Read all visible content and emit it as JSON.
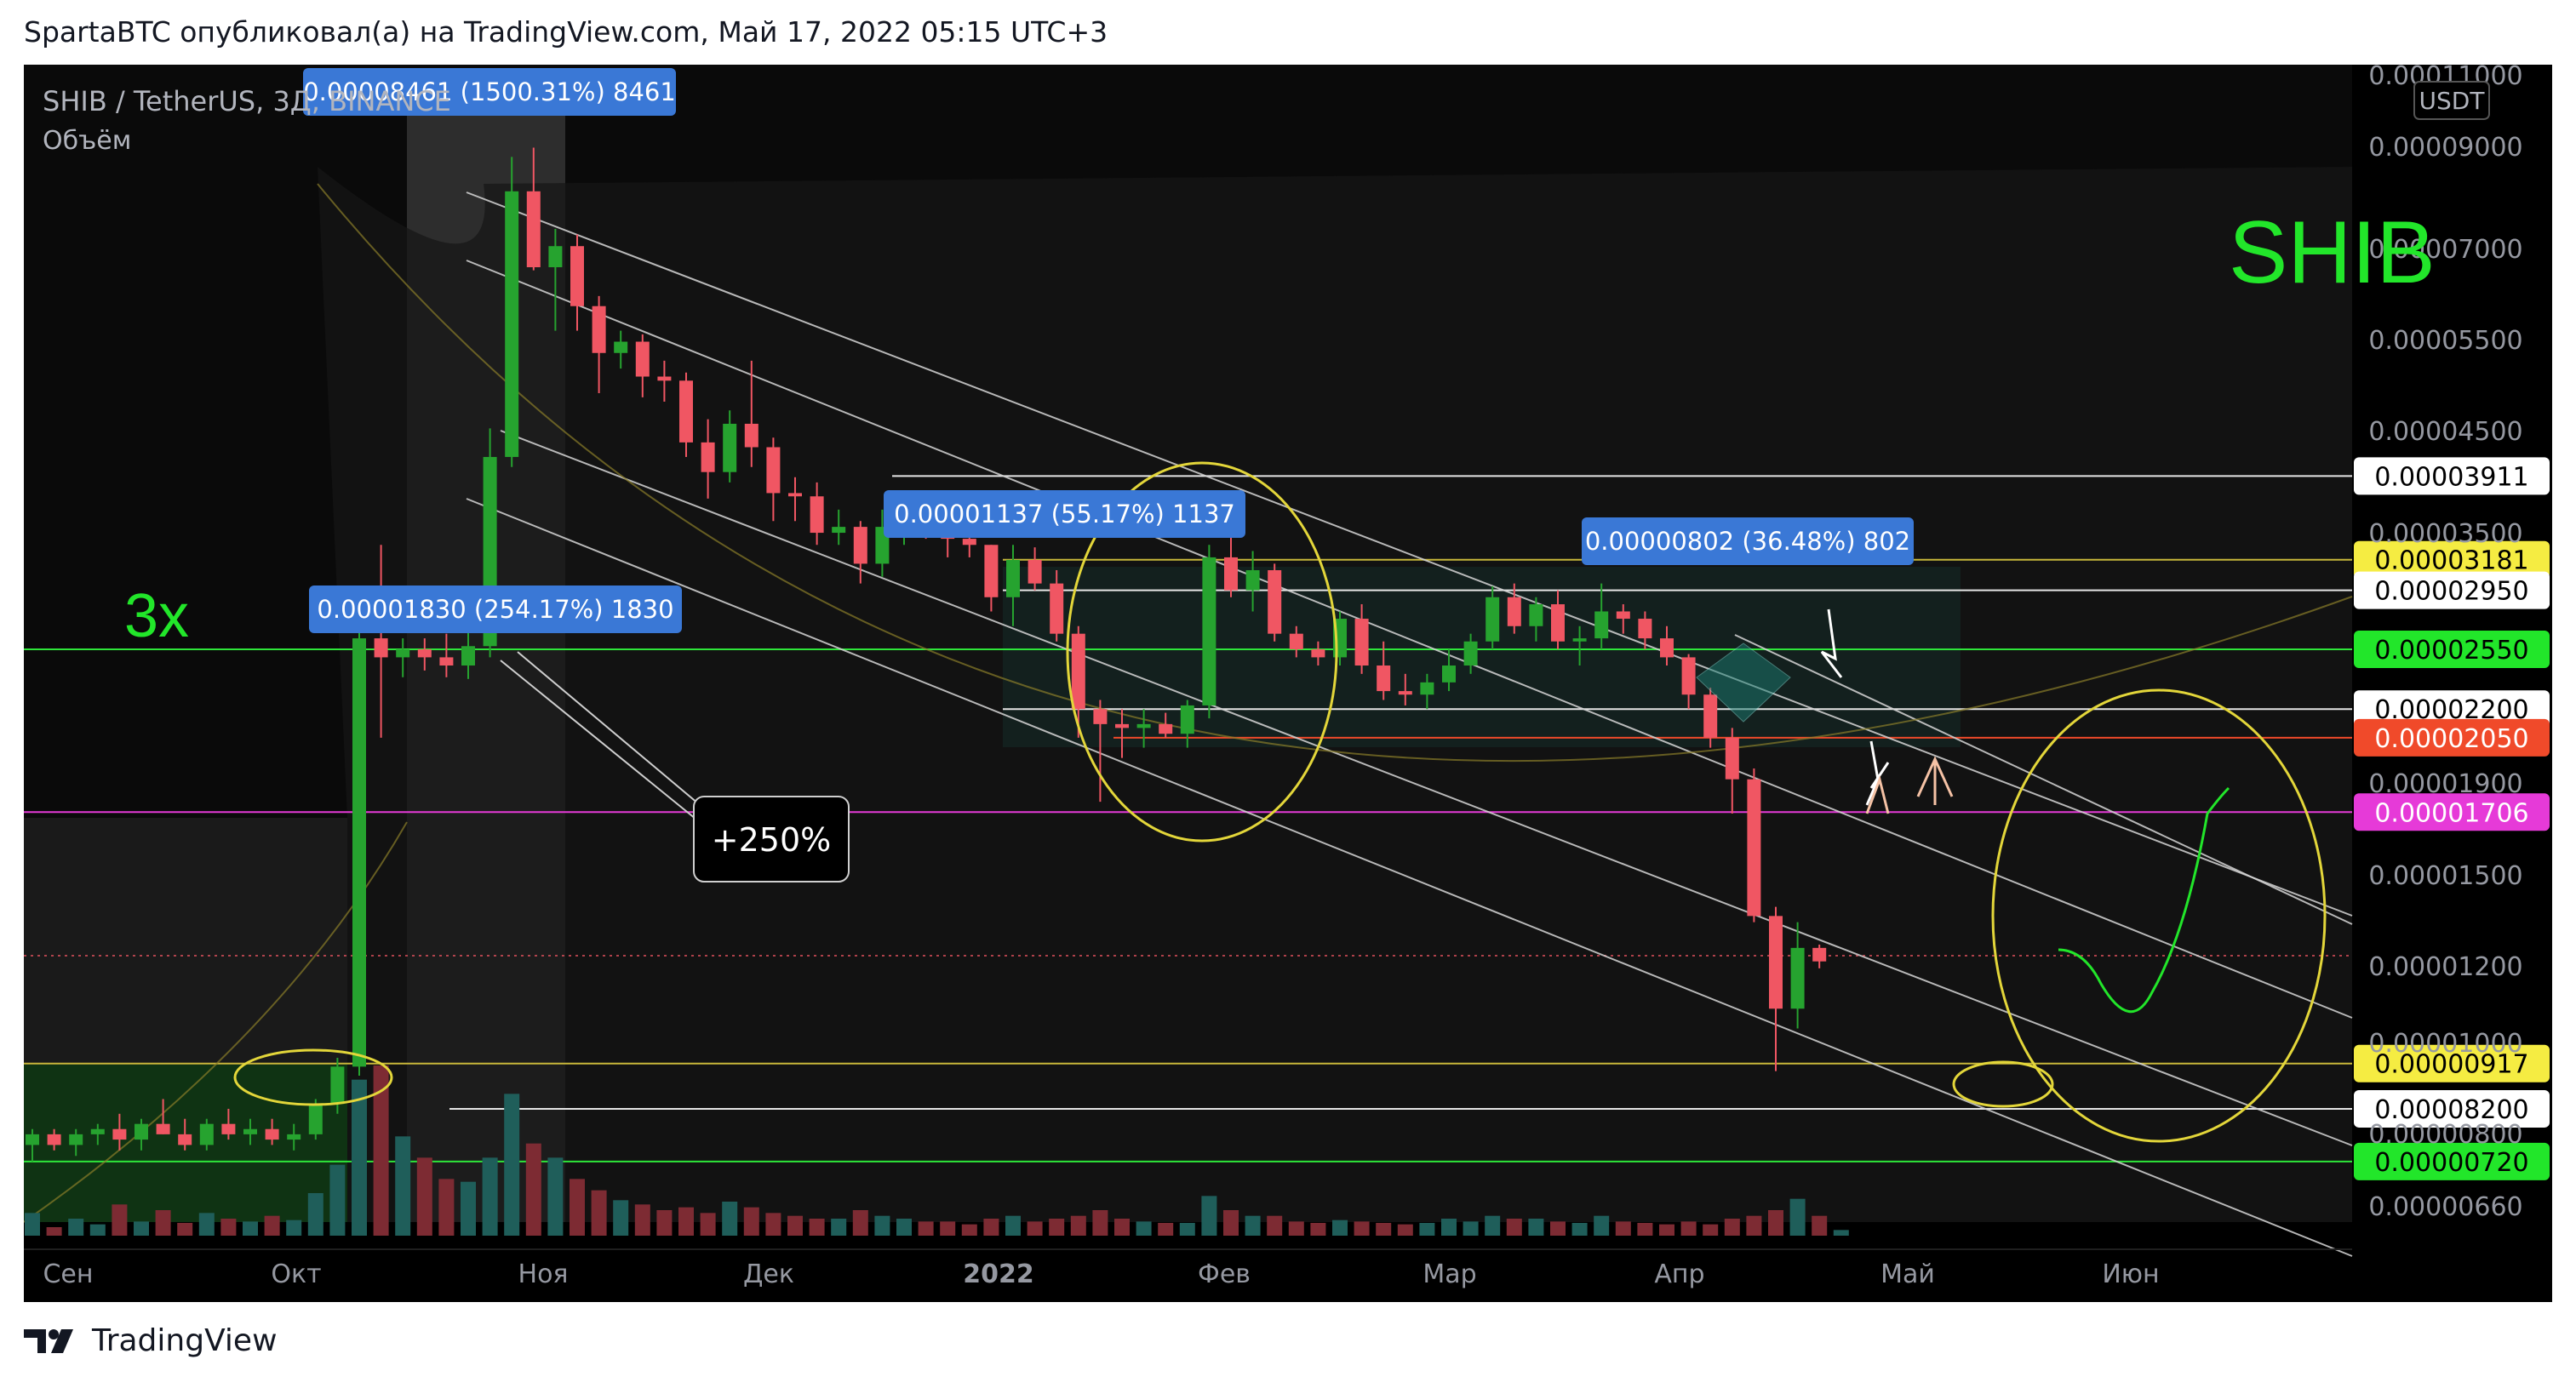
{
  "header": {
    "text": "SpartaBTC опубликовал(а) на TradingView.com, Май 17, 2022 05:15 UTC+3"
  },
  "footer": {
    "brand": "TradingView"
  },
  "colors": {
    "bg": "#000000",
    "up": "#26a32f",
    "down": "#f05663",
    "vol_up": "#1f5e5a",
    "vol_down": "#7d2b33",
    "channel": "#d6d6d6",
    "box": "#1b7d72",
    "ellipse": "#e3d63a",
    "green_text": "#22e62a",
    "label_blue": "#3a78d6"
  },
  "chart_data": {
    "type": "candlestick",
    "title": "SHIB / TetherUS, 3Д, BINANCE",
    "volume_label": "Объём",
    "watermark": "SHIB",
    "currency_badge": "USDT",
    "x_ticks": [
      "Сен",
      "Окт",
      "Ноя",
      "Дек",
      "2022",
      "Фев",
      "Мар",
      "Апр",
      "Май",
      "Июн"
    ],
    "y_ticks": [
      "0.00011000",
      "0.00009000",
      "0.00007000",
      "0.00005500",
      "0.00004500",
      "0.00003500",
      "0.00001900",
      "0.00001500",
      "0.00001200",
      "0.00001000",
      "0.00000800",
      "0.00000660"
    ],
    "price_levels": [
      {
        "label": "0.00008200",
        "style": "white"
      },
      {
        "label": "0.00003911",
        "style": "white"
      },
      {
        "label": "0.00003181",
        "style": "yellow"
      },
      {
        "label": "0.00002950",
        "style": "white"
      },
      {
        "label": "0.00002550",
        "style": "green"
      },
      {
        "label": "0.00002200",
        "style": "white"
      },
      {
        "label": "0.00002050",
        "style": "red"
      },
      {
        "label": "0.00001706",
        "style": "magenta"
      },
      {
        "label": "0.00000917",
        "style": "yellow"
      },
      {
        "label": "0.00000720",
        "style": "green"
      }
    ],
    "annotations": [
      {
        "text": "0.00008461 (1500.31%) 8461",
        "kind": "measure"
      },
      {
        "text": "0.00001830 (254.17%) 1830",
        "kind": "measure"
      },
      {
        "text": "0.00001137 (55.17%) 1137",
        "kind": "measure"
      },
      {
        "text": "0.00000802 (36.48%) 802",
        "kind": "measure"
      },
      {
        "text": "+250%",
        "kind": "callout"
      },
      {
        "text": "3x",
        "kind": "note"
      }
    ],
    "candles": [
      [
        7.5e-06,
        7.8e-06,
        7.2e-06,
        7.7e-06
      ],
      [
        7.7e-06,
        7.8e-06,
        7.4e-06,
        7.5e-06
      ],
      [
        7.5e-06,
        7.8e-06,
        7.3e-06,
        7.7e-06
      ],
      [
        7.7e-06,
        7.9e-06,
        7.5e-06,
        7.8e-06
      ],
      [
        7.8e-06,
        8.1e-06,
        7.4e-06,
        7.6e-06
      ],
      [
        7.6e-06,
        8e-06,
        7.4e-06,
        7.9e-06
      ],
      [
        7.9e-06,
        8.4e-06,
        7.7e-06,
        7.7e-06
      ],
      [
        7.7e-06,
        8e-06,
        7.4e-06,
        7.5e-06
      ],
      [
        7.5e-06,
        8e-06,
        7.4e-06,
        7.9e-06
      ],
      [
        7.9e-06,
        8.2e-06,
        7.6e-06,
        7.7e-06
      ],
      [
        7.7e-06,
        8e-06,
        7.5e-06,
        7.8e-06
      ],
      [
        7.8e-06,
        8e-06,
        7.5e-06,
        7.6e-06
      ],
      [
        7.6e-06,
        7.9e-06,
        7.4e-06,
        7.7e-06
      ],
      [
        7.7e-06,
        8.4e-06,
        7.6e-06,
        8.3e-06
      ],
      [
        8.3e-06,
        9.3e-06,
        8.1e-06,
        9.1e-06
      ],
      [
        9.1e-06,
        2.75e-05,
        8.9e-06,
        2.62e-05
      ],
      [
        2.62e-05,
        3.3e-05,
        2.05e-05,
        2.5e-05
      ],
      [
        2.5e-05,
        2.62e-05,
        2.38e-05,
        2.55e-05
      ],
      [
        2.55e-05,
        2.62e-05,
        2.42e-05,
        2.5e-05
      ],
      [
        2.5e-05,
        2.65e-05,
        2.38e-05,
        2.45e-05
      ],
      [
        2.45e-05,
        2.7e-05,
        2.37e-05,
        2.57e-05
      ],
      [
        2.57e-05,
        4.4e-05,
        2.5e-05,
        4.1e-05
      ],
      [
        4.1e-05,
        8.6e-05,
        4e-05,
        7.9e-05
      ],
      [
        7.9e-05,
        8.8e-05,
        6.5e-05,
        6.55e-05
      ],
      [
        6.55e-05,
        7.2e-05,
        5.6e-05,
        6.9e-05
      ],
      [
        6.9e-05,
        7.1e-05,
        5.6e-05,
        5.95e-05
      ],
      [
        5.95e-05,
        6.1e-05,
        4.8e-05,
        5.3e-05
      ],
      [
        5.3e-05,
        5.6e-05,
        5.1e-05,
        5.45e-05
      ],
      [
        5.45e-05,
        5.55e-05,
        4.75e-05,
        5e-05
      ],
      [
        5e-05,
        5.2e-05,
        4.7e-05,
        4.95e-05
      ],
      [
        4.95e-05,
        5.05e-05,
        4.1e-05,
        4.25e-05
      ],
      [
        4.25e-05,
        4.5e-05,
        3.7e-05,
        3.95e-05
      ],
      [
        3.95e-05,
        4.6e-05,
        3.85e-05,
        4.45e-05
      ],
      [
        4.45e-05,
        5.2e-05,
        4e-05,
        4.2e-05
      ],
      [
        4.2e-05,
        4.3e-05,
        3.5e-05,
        3.75e-05
      ],
      [
        3.75e-05,
        3.9e-05,
        3.5e-05,
        3.72e-05
      ],
      [
        3.72e-05,
        3.85e-05,
        3.3e-05,
        3.4e-05
      ],
      [
        3.4e-05,
        3.6e-05,
        3.3e-05,
        3.45e-05
      ],
      [
        3.45e-05,
        3.5e-05,
        3e-05,
        3.15e-05
      ],
      [
        3.15e-05,
        3.6e-05,
        3.05e-05,
        3.45e-05
      ],
      [
        3.45e-05,
        3.7e-05,
        3.3e-05,
        3.5e-05
      ],
      [
        3.5e-05,
        3.6e-05,
        3.35e-05,
        3.42e-05
      ],
      [
        3.42e-05,
        3.45e-05,
        3.2e-05,
        3.35e-05
      ],
      [
        3.35e-05,
        3.5e-05,
        3.2e-05,
        3.3e-05
      ],
      [
        3.3e-05,
        3.3e-05,
        2.8e-05,
        2.9e-05
      ],
      [
        2.9e-05,
        3.3e-05,
        2.7e-05,
        3.18e-05
      ],
      [
        3.18e-05,
        3.28e-05,
        2.95e-05,
        3e-05
      ],
      [
        3e-05,
        3.1e-05,
        2.6e-05,
        2.65e-05
      ],
      [
        2.65e-05,
        2.7e-05,
        2.05e-05,
        2.2e-05
      ],
      [
        2.2e-05,
        2.25e-05,
        1.75e-05,
        2.12e-05
      ],
      [
        2.12e-05,
        2.2e-05,
        1.95e-05,
        2.1e-05
      ],
      [
        2.1e-05,
        2.2e-05,
        2e-05,
        2.12e-05
      ],
      [
        2.12e-05,
        2.18e-05,
        2.05e-05,
        2.07e-05
      ],
      [
        2.07e-05,
        2.25e-05,
        2e-05,
        2.22e-05
      ],
      [
        2.22e-05,
        3.3e-05,
        2.15e-05,
        3.2e-05
      ],
      [
        3.2e-05,
        3.5e-05,
        2.9e-05,
        2.95e-05
      ],
      [
        2.95e-05,
        3.25e-05,
        2.8e-05,
        3.1e-05
      ],
      [
        3.1e-05,
        3.15e-05,
        2.6e-05,
        2.65e-05
      ],
      [
        2.65e-05,
        2.7e-05,
        2.5e-05,
        2.55e-05
      ],
      [
        2.55e-05,
        2.6e-05,
        2.45e-05,
        2.5e-05
      ],
      [
        2.5e-05,
        2.8e-05,
        2.45e-05,
        2.75e-05
      ],
      [
        2.75e-05,
        2.85e-05,
        2.4e-05,
        2.45e-05
      ],
      [
        2.45e-05,
        2.6e-05,
        2.25e-05,
        2.3e-05
      ],
      [
        2.3e-05,
        2.4e-05,
        2.22e-05,
        2.28e-05
      ],
      [
        2.28e-05,
        2.4e-05,
        2.2e-05,
        2.35e-05
      ],
      [
        2.35e-05,
        2.55e-05,
        2.3e-05,
        2.45e-05
      ],
      [
        2.45e-05,
        2.65e-05,
        2.4e-05,
        2.6e-05
      ],
      [
        2.6e-05,
        2.98e-05,
        2.55e-05,
        2.9e-05
      ],
      [
        2.9e-05,
        3e-05,
        2.65e-05,
        2.7e-05
      ],
      [
        2.7e-05,
        2.9e-05,
        2.6e-05,
        2.85e-05
      ],
      [
        2.85e-05,
        2.95e-05,
        2.55e-05,
        2.6e-05
      ],
      [
        2.6e-05,
        2.7e-05,
        2.45e-05,
        2.62e-05
      ],
      [
        2.62e-05,
        3e-05,
        2.55e-05,
        2.8e-05
      ],
      [
        2.8e-05,
        2.85e-05,
        2.65e-05,
        2.75e-05
      ],
      [
        2.75e-05,
        2.8e-05,
        2.55e-05,
        2.62e-05
      ],
      [
        2.62e-05,
        2.7e-05,
        2.45e-05,
        2.5e-05
      ],
      [
        2.5e-05,
        2.52e-05,
        2.2e-05,
        2.28e-05
      ],
      [
        2.28e-05,
        2.32e-05,
        2e-05,
        2.05e-05
      ],
      [
        2.05e-05,
        2.1e-05,
        1.7e-05,
        1.85e-05
      ],
      [
        1.85e-05,
        1.9e-05,
        1.3e-05,
        1.32e-05
      ],
      [
        1.32e-05,
        1.35e-05,
        9e-06,
        1.05e-05
      ],
      [
        1.05e-05,
        1.3e-05,
        1e-05,
        1.22e-05
      ],
      [
        1.22e-05,
        1.23e-05,
        1.16e-05,
        1.18e-05
      ]
    ],
    "volume": [
      16,
      6,
      12,
      8,
      22,
      10,
      18,
      9,
      16,
      12,
      10,
      14,
      11,
      30,
      50,
      110,
      120,
      70,
      55,
      40,
      38,
      55,
      100,
      65,
      55,
      40,
      32,
      25,
      22,
      18,
      20,
      16,
      24,
      20,
      16,
      14,
      12,
      12,
      18,
      14,
      12,
      10,
      10,
      8,
      12,
      14,
      10,
      12,
      14,
      18,
      12,
      10,
      9,
      9,
      28,
      18,
      14,
      14,
      10,
      9,
      11,
      10,
      9,
      8,
      9,
      12,
      10,
      14,
      12,
      12,
      10,
      9,
      14,
      10,
      9,
      8,
      10,
      8,
      12,
      14,
      18,
      26,
      14,
      4
    ]
  }
}
